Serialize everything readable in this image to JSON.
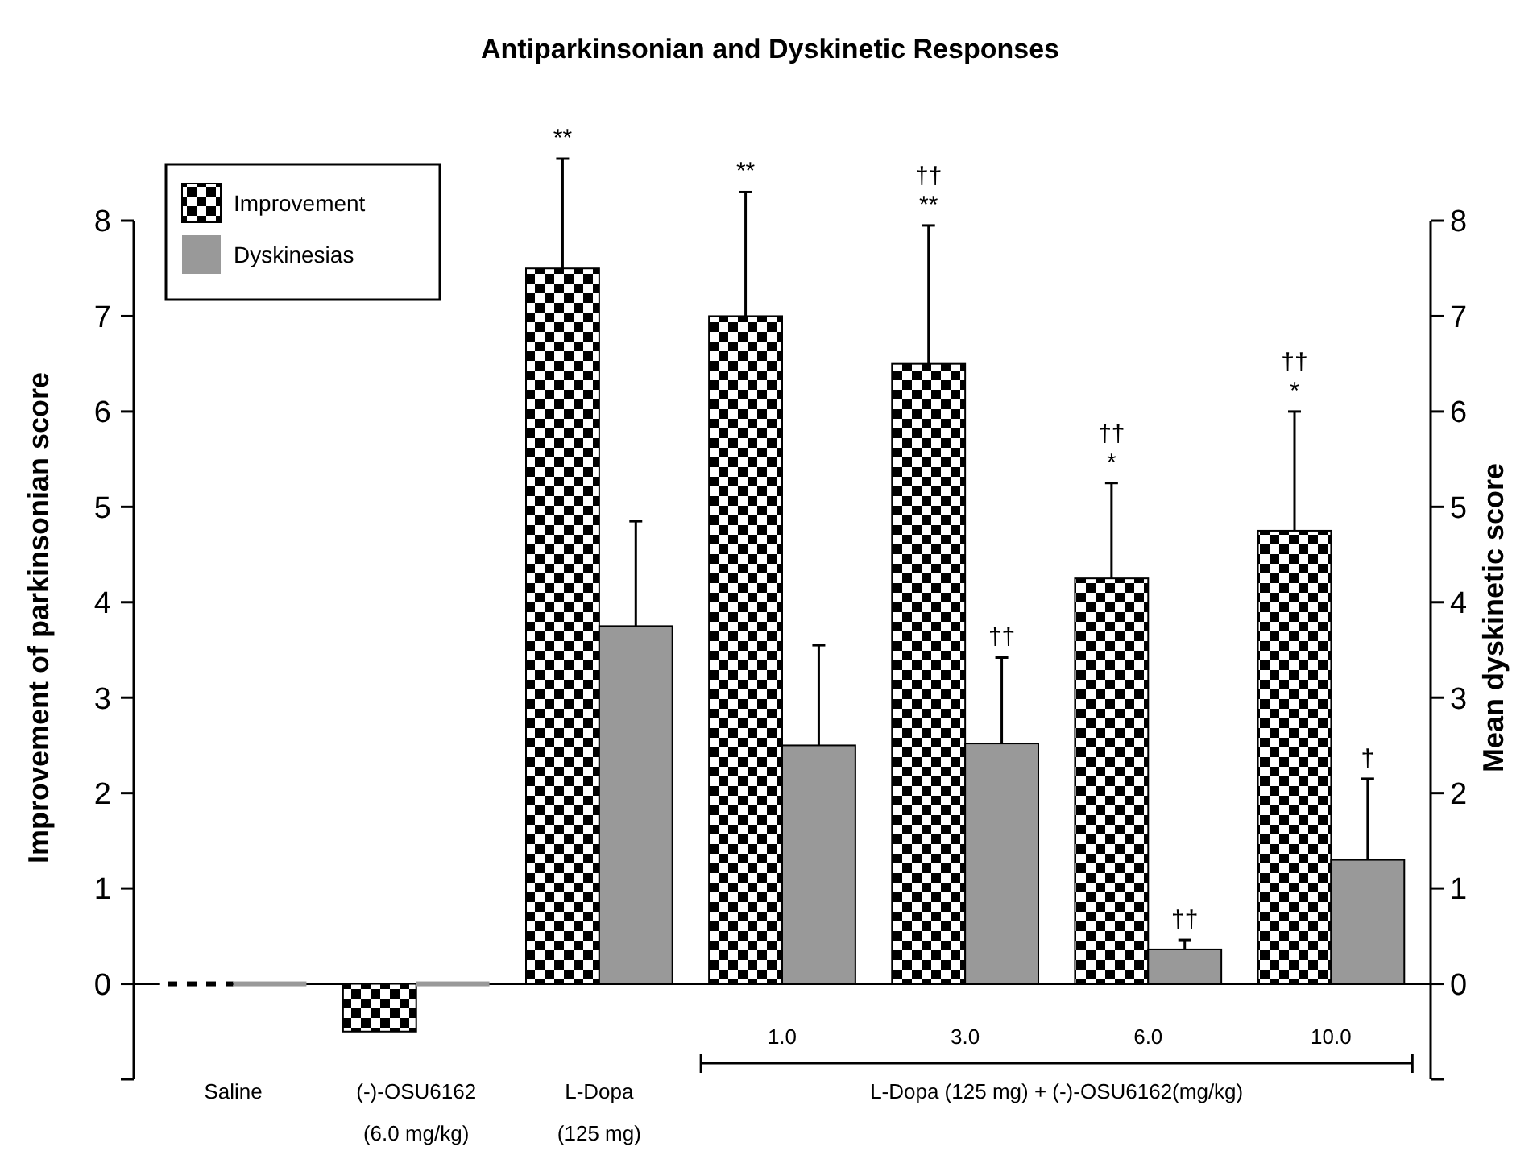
{
  "chart_data": {
    "type": "bar",
    "title": "Antiparkinsonian and Dyskinetic Responses",
    "ylabel": "Improvement of parkinsonian score",
    "y2label": "Mean dyskinetic score",
    "categories": [
      "Saline",
      "(-)-OSU6162\n(6.0 mg/kg)",
      "L-Dopa\n(125 mg)",
      "1.0",
      "3.0",
      "6.0",
      "10.0"
    ],
    "series": [
      {
        "name": "Improvement",
        "color": "#000000",
        "values": [
          0,
          -0.5,
          7.5,
          7.0,
          6.5,
          4.25,
          4.75
        ],
        "errors": [
          null,
          null,
          1.15,
          1.3,
          1.45,
          1.0,
          1.25
        ]
      },
      {
        "name": "Dyskinesias",
        "color": "#999999",
        "axis": "y2",
        "values": [
          0,
          0,
          3.75,
          2.5,
          2.52,
          0.36,
          1.3
        ],
        "errors": [
          null,
          null,
          1.1,
          1.05,
          0.9,
          0.1,
          0.85
        ]
      }
    ],
    "ylim": [
      -1,
      8
    ],
    "yticks": [
      0,
      1,
      2,
      3,
      4,
      5,
      6,
      7,
      8
    ],
    "y2lim": [
      -1,
      8
    ],
    "y2ticks": [
      0,
      1,
      2,
      3,
      4,
      5,
      6,
      7,
      8
    ],
    "ref_lines": [
      {
        "axis": "y",
        "value": 0,
        "color": "#000000"
      }
    ],
    "legend": "top left",
    "annotations": [
      "**",
      "**",
      "**",
      "††",
      "††",
      "*",
      "††",
      "††",
      "*",
      "††",
      "†",
      "L-Dopa (125 mg) + (-)-OSU6162(mg/kg)"
    ]
  }
}
